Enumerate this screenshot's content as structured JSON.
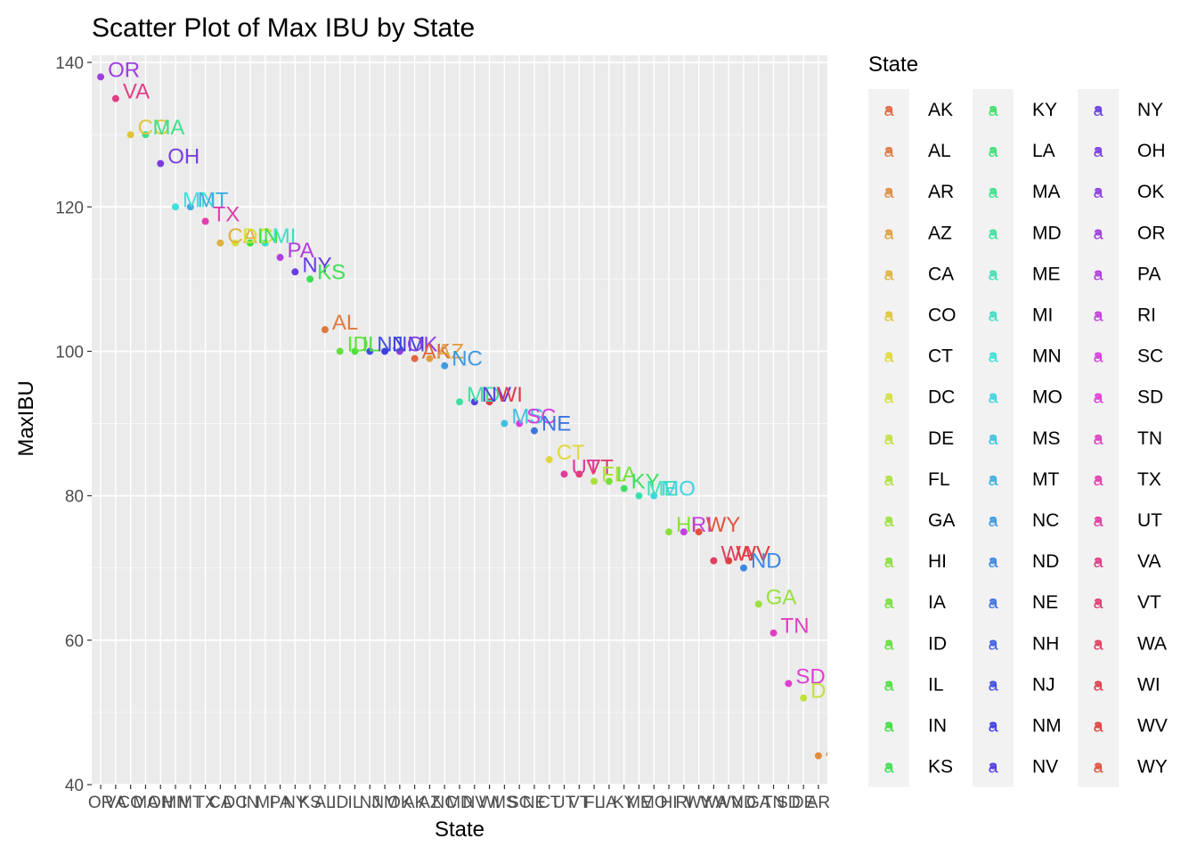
{
  "chart_data": {
    "type": "scatter",
    "title": "Scatter Plot of Max IBU by State",
    "xlabel": "State",
    "ylabel": "MaxIBU",
    "ylim": [
      40,
      141
    ],
    "y_ticks": [
      40,
      60,
      80,
      100,
      120,
      140
    ],
    "grid": true,
    "legend": {
      "title": "State",
      "placement": "right",
      "columns": 3
    },
    "categories": [
      "OR",
      "VA",
      "CO",
      "MA",
      "OH",
      "MN",
      "MT",
      "TX",
      "CA",
      "DC",
      "IN",
      "MI",
      "PA",
      "NY",
      "KS",
      "AL",
      "ID",
      "IL",
      "NJ",
      "NM",
      "OK",
      "AK",
      "AZ",
      "NC",
      "MD",
      "NV",
      "WI",
      "MS",
      "SC",
      "NE",
      "CT",
      "UT",
      "VT",
      "FL",
      "IA",
      "KY",
      "ME",
      "MO",
      "HI",
      "RI",
      "WY",
      "WA",
      "WV",
      "ND",
      "GA",
      "TN",
      "SD",
      "DE",
      "AR"
    ],
    "values": [
      138,
      135,
      130,
      130,
      126,
      120,
      120,
      118,
      115,
      115,
      115,
      115,
      113,
      111,
      110,
      103,
      100,
      100,
      100,
      100,
      100,
      99,
      99,
      98,
      93,
      93,
      93,
      90,
      90,
      89,
      85,
      83,
      83,
      82,
      82,
      81,
      80,
      80,
      75,
      75,
      75,
      71,
      71,
      70,
      65,
      61,
      54,
      52,
      44
    ],
    "legend_states": [
      "AK",
      "AL",
      "AR",
      "AZ",
      "CA",
      "CO",
      "CT",
      "DC",
      "DE",
      "FL",
      "GA",
      "HI",
      "IA",
      "ID",
      "IL",
      "IN",
      "KS",
      "KY",
      "LA",
      "MA",
      "MD",
      "ME",
      "MI",
      "MN",
      "MO",
      "MS",
      "MT",
      "NC",
      "ND",
      "NE",
      "NH",
      "NJ",
      "NM",
      "NV",
      "NY",
      "OH",
      "OK",
      "OR",
      "PA",
      "RI",
      "SC",
      "SD",
      "TN",
      "TX",
      "UT",
      "VA",
      "VT",
      "WA",
      "WI",
      "WV",
      "WY"
    ],
    "legend_glyph": "a"
  }
}
